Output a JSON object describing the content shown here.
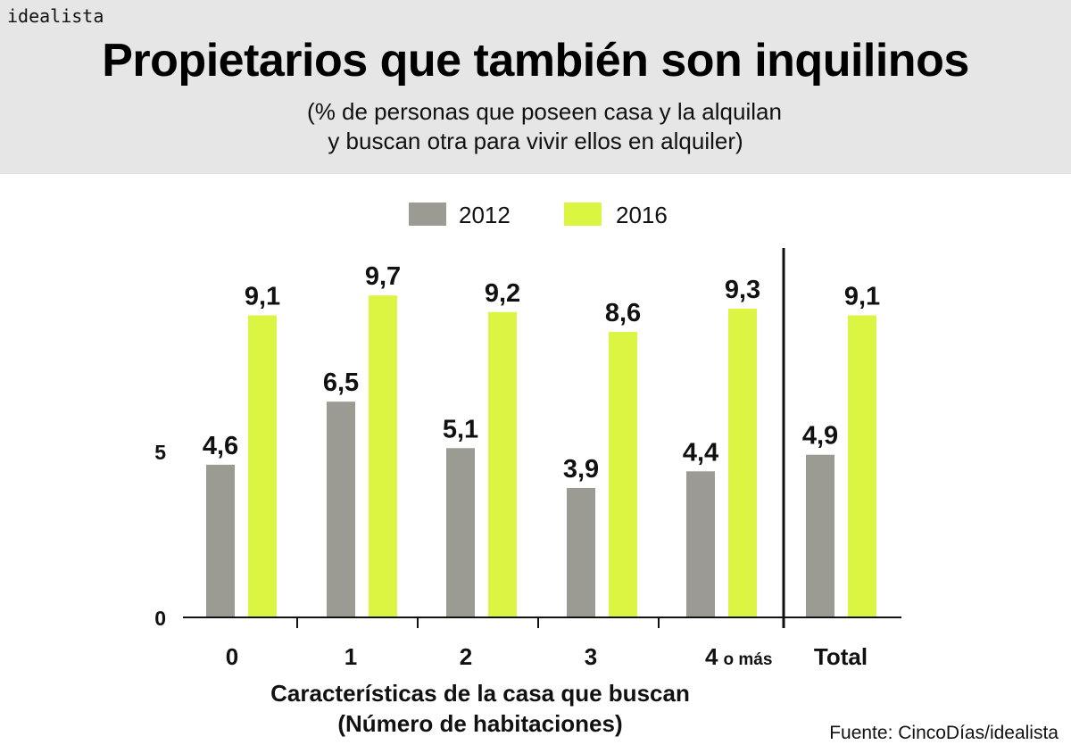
{
  "logo": "idealista",
  "header": {
    "title": "Propietarios que también son inquilinos",
    "subtitle_line1": "(% de personas que poseen casa y la alquilan",
    "subtitle_line2": "y buscan otra para vivir ellos en alquiler)"
  },
  "source": "Fuente: CincoDías/idealista",
  "chart_data": {
    "type": "bar",
    "title": "Propietarios que también son inquilinos",
    "subtitle": "(% de personas que poseen casa y la alquilan y buscan otra para vivir ellos en alquiler)",
    "xlabel_line1": "Características de la casa que buscan",
    "xlabel_line2": "(Número de habitaciones)",
    "ylabel": "",
    "categories": [
      "0",
      "1",
      "2",
      "3",
      "4",
      "Total"
    ],
    "category_suffix": {
      "4": "o más"
    },
    "ylim": [
      0,
      10
    ],
    "yticks": [
      0,
      5
    ],
    "grid": false,
    "legend_placement": "top-center",
    "series": [
      {
        "name": "2012",
        "color": "#9b9b94",
        "values": [
          4.6,
          6.5,
          5.1,
          3.9,
          4.4,
          4.9
        ],
        "labels": [
          "4,6",
          "6,5",
          "5,1",
          "3,9",
          "4,4",
          "4,9"
        ]
      },
      {
        "name": "2016",
        "color": "#dcf542",
        "values": [
          9.1,
          9.7,
          9.2,
          8.6,
          9.3,
          9.1
        ],
        "labels": [
          "9,1",
          "9,7",
          "9,2",
          "8,6",
          "9,3",
          "9,1"
        ]
      }
    ]
  }
}
